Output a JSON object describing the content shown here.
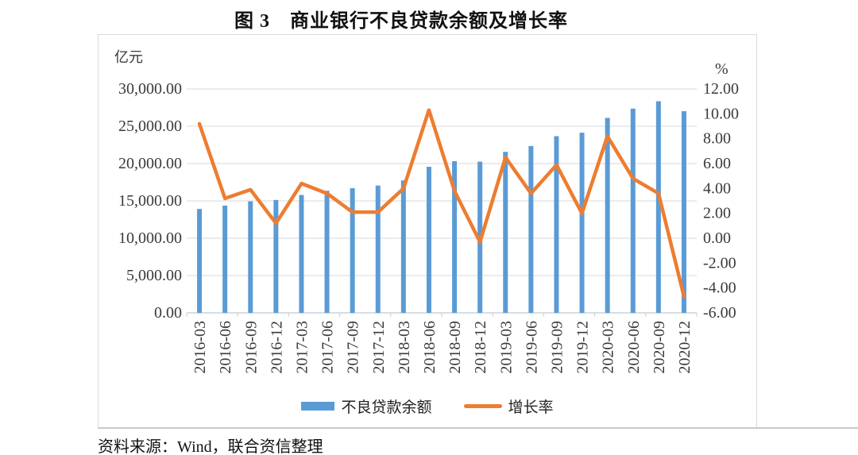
{
  "title": "图 3　商业银行不良贷款余额及增长率",
  "source": "资料来源：Wind，联合资信整理",
  "left_axis": {
    "unit": "亿元",
    "tick_labels": [
      "30,000.00",
      "25,000.00",
      "20,000.00",
      "15,000.00",
      "10,000.00",
      "5,000.00",
      "0.00"
    ]
  },
  "right_axis": {
    "unit": "%",
    "tick_labels": [
      "12.00",
      "10.00",
      "8.00",
      "6.00",
      "4.00",
      "2.00",
      "0.00",
      "-2.00",
      "-4.00",
      "-6.00"
    ]
  },
  "legend": [
    {
      "label": "不良贷款余额",
      "type": "bar",
      "color": "#5B9BD5"
    },
    {
      "label": "增长率",
      "type": "line",
      "color": "#ED7D31"
    }
  ],
  "colors": {
    "bar": "#5B9BD5",
    "line": "#ED7D31",
    "gridline": "#d9d9d9",
    "axis_line": "#aebdcb",
    "tick_mark": "#cfcfcf",
    "tick_text": "#3a3a3a",
    "frame_border": "#d9d9d9"
  },
  "chart_data": {
    "type": "bar+line combo",
    "title": "图 3　商业银行不良贷款余额及增长率",
    "categories": [
      "2016-03",
      "2016-06",
      "2016-09",
      "2016-12",
      "2017-03",
      "2017-06",
      "2017-09",
      "2017-12",
      "2018-03",
      "2018-06",
      "2018-09",
      "2018-12",
      "2019-03",
      "2019-06",
      "2019-09",
      "2019-12",
      "2020-03",
      "2020-06",
      "2020-09",
      "2020-12"
    ],
    "series": [
      {
        "name": "不良贷款余额",
        "type": "bar",
        "axis": "left",
        "unit": "亿元",
        "color": "#5B9BD5",
        "values": [
          13921,
          14373,
          14939,
          15123,
          15795,
          16358,
          16704,
          17057,
          17742,
          19571,
          20322,
          20254,
          21571,
          22352,
          23672,
          24135,
          26121,
          27364,
          28350,
          27015
        ]
      },
      {
        "name": "增长率",
        "type": "line",
        "axis": "right",
        "unit": "%",
        "color": "#ED7D31",
        "values": [
          9.2,
          3.2,
          3.9,
          1.2,
          4.4,
          3.6,
          2.1,
          2.1,
          4.0,
          10.3,
          3.8,
          -0.3,
          6.5,
          3.6,
          5.9,
          2.0,
          8.2,
          4.8,
          3.6,
          -4.7
        ]
      }
    ],
    "left_ylim": [
      0,
      30000
    ],
    "left_tick_step": 5000,
    "right_ylim": [
      -6,
      12
    ],
    "right_tick_step": 2,
    "grid": true,
    "legend_position": "bottom"
  }
}
